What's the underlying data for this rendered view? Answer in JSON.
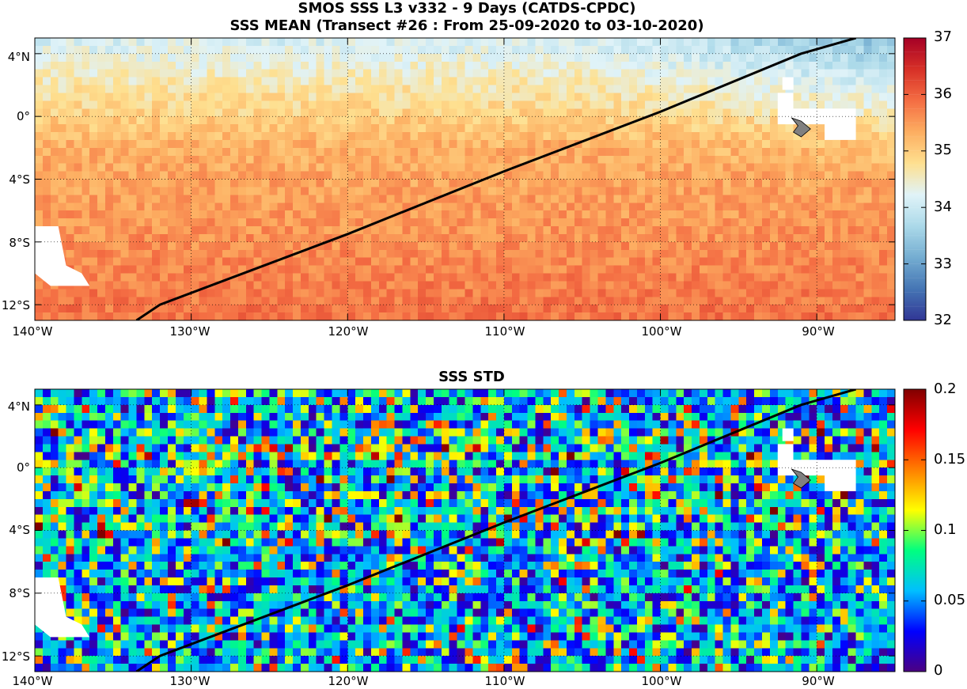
{
  "title_line1": "SMOS SSS L3 v332 - 9 Days (CATDS-CPDC)",
  "title_line2": "SSS MEAN (Transect #26 : From 25-09-2020 to 03-10-2020)",
  "title_std": "SSS STD",
  "lat_labels": [
    "4°N",
    "0°",
    "4°S",
    "8°S",
    "12°S"
  ],
  "lon_labels": [
    "140°W",
    "130°W",
    "120°W",
    "110°W",
    "100°W",
    "90°W"
  ],
  "map_extent": {
    "lon_range": [
      -140,
      -85
    ],
    "lat_range": [
      -13,
      5
    ]
  },
  "transect": {
    "lon": [
      -133.5,
      -132,
      -120,
      -110,
      -100,
      -91,
      -87.5
    ],
    "lat": [
      -13,
      -12,
      -7.5,
      -3.5,
      0.3,
      4,
      5
    ]
  },
  "mean_colorbar": {
    "range": [
      32,
      37
    ],
    "tick_labels": [
      "37",
      "36",
      "35",
      "34",
      "33",
      "32"
    ],
    "colors": [
      "#313695",
      "#4575b4",
      "#74add1",
      "#abd9e9",
      "#e0f3f8",
      "#fee090",
      "#fdae61",
      "#f46d43",
      "#d73027",
      "#a50026"
    ]
  },
  "std_colorbar": {
    "range": [
      0,
      0.2
    ],
    "tick_labels": [
      "0.2",
      "0.15",
      "0.1",
      "0.05",
      "0"
    ],
    "colors": [
      "#4b0082",
      "#0000ff",
      "#00bfff",
      "#00ff80",
      "#ffff00",
      "#ff8000",
      "#ff0000",
      "#800000"
    ]
  }
}
